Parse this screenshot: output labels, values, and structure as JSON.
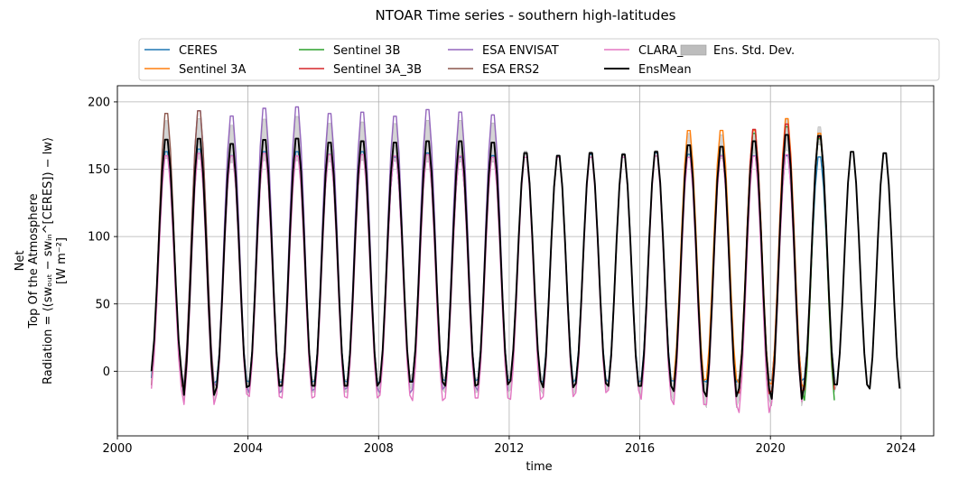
{
  "chart_data": {
    "type": "line",
    "title": "NTOAR Time series - southern high-latitudes",
    "xlabel": "time",
    "ylabel_lines": [
      "Net",
      "Top Of the Atmosphere",
      "Radiation = ⟨(swₒᵤₜ − swᵢₙ^[CERES]) − lw⟩",
      "[W m⁻²]"
    ],
    "xlim": [
      2000.0,
      2025.0
    ],
    "ylim": [
      -48,
      212
    ],
    "xticks": [
      2000,
      2004,
      2008,
      2012,
      2016,
      2020,
      2024
    ],
    "xtick_labels": [
      "2000",
      "2004",
      "2008",
      "2012",
      "2016",
      "2020",
      "2024"
    ],
    "yticks": [
      0,
      50,
      100,
      150,
      200
    ],
    "ytick_labels": [
      "0",
      "50",
      "100",
      "150",
      "200"
    ],
    "grid": true,
    "legend_position": "top, outside plot",
    "legend": [
      {
        "name": "CERES",
        "color": "#1f77b4",
        "kind": "line"
      },
      {
        "name": "Sentinel 3A",
        "color": "#ff7f0e",
        "kind": "line"
      },
      {
        "name": "Sentinel 3B",
        "color": "#2ca02c",
        "kind": "line"
      },
      {
        "name": "Sentinel 3A_3B",
        "color": "#d62728",
        "kind": "line"
      },
      {
        "name": "ESA ENVISAT",
        "color": "#9467bd",
        "kind": "line"
      },
      {
        "name": "ESA ERS2",
        "color": "#8c564b",
        "kind": "line"
      },
      {
        "name": "CLARA_A3",
        "color": "#e377c2",
        "kind": "line"
      },
      {
        "name": "EnsMean",
        "color": "#000000",
        "kind": "line"
      },
      {
        "name": "Ens. Std. Dev.",
        "color": "#bdbdbd",
        "kind": "patch"
      }
    ],
    "series": [
      {
        "name": "CERES",
        "color": "#1f77b4",
        "start": 2001.0,
        "end": 2021.95,
        "peaks": [
          166,
          168,
          163,
          166,
          166,
          164,
          166,
          162,
          165,
          162,
          163,
          165,
          163,
          164,
          164,
          165,
          164,
          163,
          163,
          163,
          162
        ],
        "troughs": [
          -8,
          -12,
          -10,
          -11,
          -11,
          -10,
          -11,
          -11,
          -9,
          -10,
          -9,
          -10,
          -11,
          -9,
          -11,
          -10,
          -10,
          -11,
          -9,
          -10,
          -8
        ]
      },
      {
        "name": "Sentinel 3A",
        "color": "#ff7f0e",
        "start": 2017.0,
        "end": 2021.95,
        "peaks": [
          182,
          182,
          182,
          191,
          180
        ],
        "troughs": [
          -10,
          -9,
          -12,
          -13,
          -16
        ]
      },
      {
        "name": "Sentinel 3B",
        "color": "#2ca02c",
        "start": 2019.0,
        "end": 2021.95,
        "peaks": [
          180,
          185,
          176
        ],
        "troughs": [
          -20,
          -18,
          -25
        ]
      },
      {
        "name": "Sentinel 3A_3B",
        "color": "#d62728",
        "start": 2019.0,
        "end": 2021.95,
        "peaks": [
          183,
          187,
          177
        ],
        "troughs": [
          -20,
          -18,
          -17
        ]
      },
      {
        "name": "ESA ENVISAT",
        "color": "#9467bd",
        "start": 2002.0,
        "end": 2011.95,
        "peaks": [
          197,
          193,
          199,
          200,
          195,
          196,
          193,
          198,
          196,
          194
        ],
        "troughs": [
          -12,
          -15,
          -20,
          -18,
          -17,
          -16,
          -20,
          -17,
          -15,
          -18
        ]
      },
      {
        "name": "ESA ERS2",
        "color": "#8c564b",
        "start": 2001.0,
        "end": 2002.95,
        "peaks": [
          195,
          197
        ],
        "troughs": [
          -14,
          -16
        ]
      },
      {
        "name": "CLARA_A3",
        "color": "#e377c2",
        "start": 2001.0,
        "end": 2020.95,
        "peaks": [
          163,
          165,
          163,
          165,
          163,
          164,
          164,
          163,
          164,
          163,
          162,
          162,
          162,
          162,
          162,
          163,
          162,
          163,
          163,
          164
        ],
        "troughs": [
          -16,
          -28,
          -20,
          -22,
          -23,
          -22,
          -23,
          -21,
          -25,
          -23,
          -23,
          -24,
          -22,
          -19,
          -17,
          -24,
          -28,
          -28,
          -34,
          -26
        ]
      },
      {
        "name": "EnsMean",
        "color": "#000000",
        "start": 2001.0,
        "end": 2023.95,
        "peaks": [
          175,
          176,
          172,
          175,
          176,
          173,
          174,
          173,
          174,
          174,
          173,
          165,
          163,
          165,
          164,
          166,
          171,
          170,
          174,
          179,
          178,
          166,
          165
        ],
        "troughs": [
          -3,
          -21,
          -15,
          -14,
          -14,
          -14,
          -14,
          -11,
          -11,
          -14,
          -13,
          -10,
          -15,
          -12,
          -14,
          -14,
          -18,
          -22,
          -16,
          -24,
          -13,
          -13,
          -16
        ]
      }
    ]
  }
}
